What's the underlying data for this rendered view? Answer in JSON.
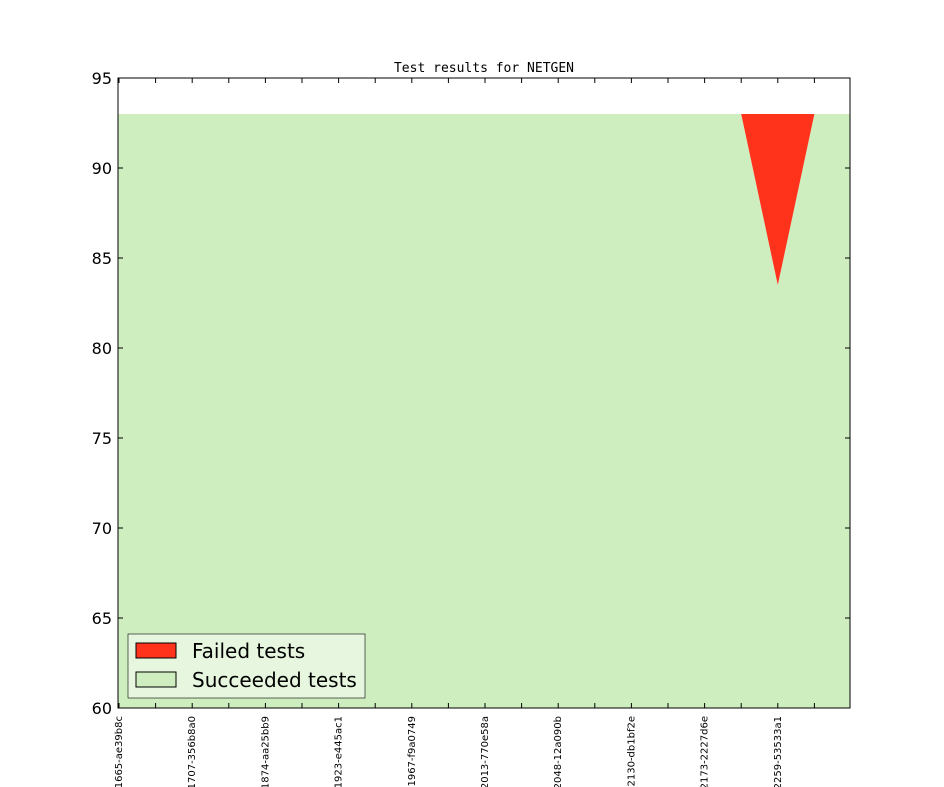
{
  "chart_data": {
    "type": "area",
    "title": "Test results for NETGEN",
    "xlabel": "",
    "ylabel": "",
    "ylim": [
      60,
      95
    ],
    "yticks": [
      60,
      65,
      70,
      75,
      80,
      85,
      90,
      95
    ],
    "categories": [
      "1665-ae39b8c",
      "",
      "1707-356b8a0",
      "",
      "1874-aa25bb9",
      "",
      "1923-e445ac1",
      "",
      "1967-f9a0749",
      "",
      "2013-770e58a",
      "",
      "2048-12a090b",
      "",
      "2130-db1bf2e",
      "",
      "2173-2227d6e",
      "",
      "2259-53533a1",
      ""
    ],
    "x_tick_labels": [
      "1665-ae39b8c",
      "1707-356b8a0",
      "1874-aa25bb9",
      "1923-e445ac1",
      "1967-f9a0749",
      "2013-770e58a",
      "2048-12a090b",
      "2130-db1bf2e",
      "2173-2227d6e",
      "2259-53533a1"
    ],
    "series": [
      {
        "name": "Failed tests",
        "color": "#ff331c",
        "values": [
          0,
          0,
          0,
          0,
          0,
          0,
          0,
          0,
          0,
          0,
          0,
          0,
          0,
          0,
          0,
          0,
          0,
          0,
          9.5,
          0
        ]
      },
      {
        "name": "Succeeded tests",
        "color": "#cfeebf",
        "values": [
          93,
          93,
          93,
          93,
          93,
          93,
          93,
          93,
          93,
          93,
          93,
          93,
          93,
          93,
          93,
          93,
          93,
          93,
          83.5,
          93
        ]
      }
    ],
    "legend_position": "lower-left",
    "grid": false
  }
}
